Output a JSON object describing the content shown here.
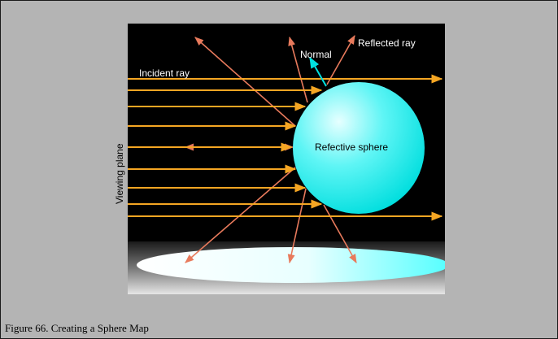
{
  "labels": {
    "incident_ray": "Incident ray",
    "normal": "Normal",
    "reflected_ray": "Reflected ray",
    "sphere": "Refective sphere",
    "viewing_plane": "Viewing plane"
  },
  "caption": "Figure 66. Creating a Sphere Map",
  "colors": {
    "page_background": "#b4b4b4",
    "panel": "#000000",
    "incident_ray": "#f5a623",
    "reflected_ray": "#e87a5c",
    "normal": "#00e0e0",
    "sphere_light": "#e6ffff",
    "sphere_dark": "#00e6e6",
    "floor_dark": "#333333",
    "floor_light": "#ffffff"
  }
}
